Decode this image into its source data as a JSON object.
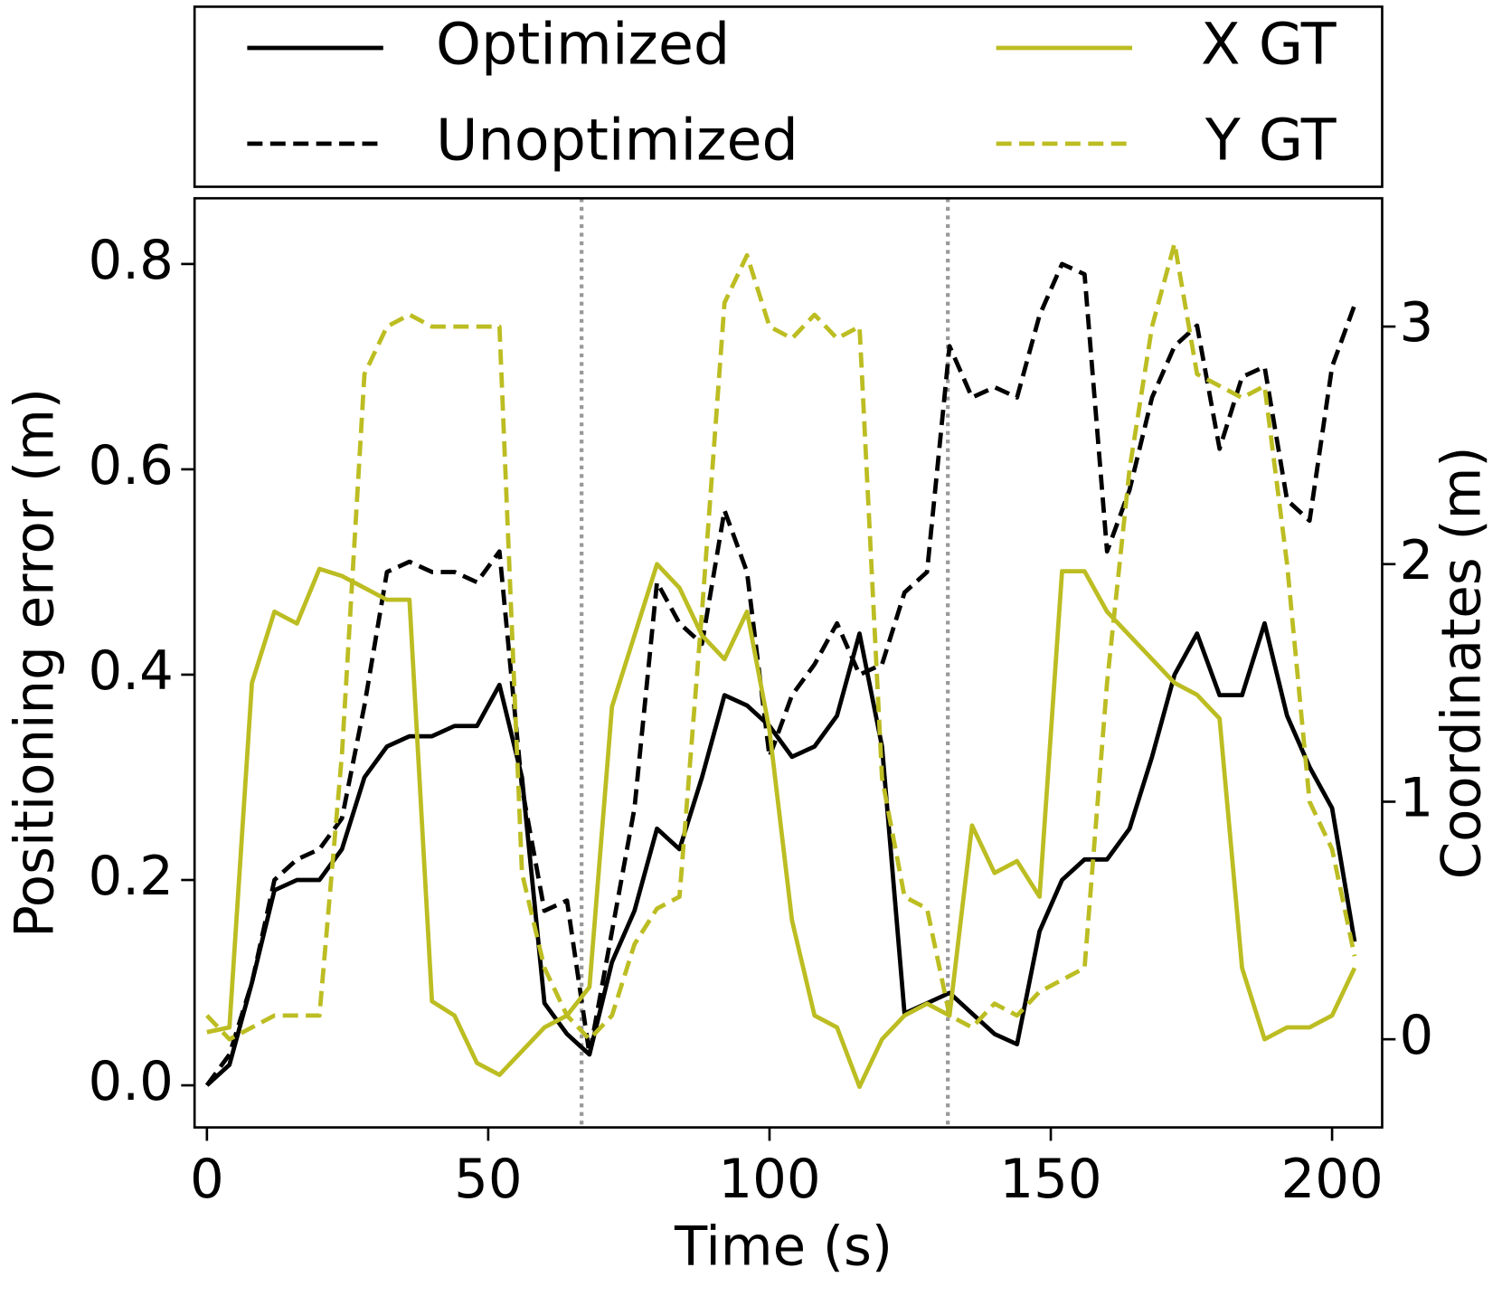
{
  "chart_data": {
    "type": "line",
    "x_label": "Time (s)",
    "y_label": "Positioning error (m)",
    "y2_label": "Coordinates (m)",
    "x": [
      0,
      4,
      8,
      12,
      16,
      20,
      24,
      28,
      32,
      36,
      40,
      44,
      48,
      52,
      56,
      60,
      64,
      68,
      72,
      76,
      80,
      84,
      88,
      92,
      96,
      100,
      104,
      108,
      112,
      116,
      120,
      124,
      128,
      132,
      136,
      140,
      144,
      148,
      152,
      156,
      160,
      164,
      168,
      172,
      176,
      180,
      184,
      188,
      192,
      196,
      200,
      204
    ],
    "series": [
      {
        "name": "Optimized",
        "color": "#000000",
        "dashed": false,
        "axis": "y",
        "values": [
          0.0,
          0.02,
          0.1,
          0.19,
          0.2,
          0.2,
          0.23,
          0.3,
          0.33,
          0.34,
          0.34,
          0.35,
          0.35,
          0.39,
          0.3,
          0.08,
          0.05,
          0.03,
          0.12,
          0.17,
          0.25,
          0.23,
          0.3,
          0.38,
          0.37,
          0.35,
          0.32,
          0.33,
          0.36,
          0.44,
          0.33,
          0.07,
          0.08,
          0.09,
          0.07,
          0.05,
          0.04,
          0.15,
          0.2,
          0.22,
          0.22,
          0.25,
          0.32,
          0.4,
          0.44,
          0.38,
          0.38,
          0.45,
          0.36,
          0.31,
          0.27,
          0.14
        ]
      },
      {
        "name": "Unoptimized",
        "color": "#000000",
        "dashed": true,
        "axis": "y",
        "values": [
          0.0,
          0.03,
          0.1,
          0.2,
          0.22,
          0.23,
          0.26,
          0.37,
          0.5,
          0.51,
          0.5,
          0.5,
          0.49,
          0.52,
          0.29,
          0.17,
          0.18,
          0.03,
          0.15,
          0.27,
          0.49,
          0.45,
          0.43,
          0.56,
          0.5,
          0.32,
          0.38,
          0.41,
          0.45,
          0.4,
          0.41,
          0.48,
          0.5,
          0.72,
          0.67,
          0.68,
          0.67,
          0.75,
          0.8,
          0.79,
          0.52,
          0.58,
          0.67,
          0.72,
          0.74,
          0.62,
          0.69,
          0.7,
          0.57,
          0.55,
          0.7,
          0.76
        ]
      },
      {
        "name": "X GT",
        "color": "#bcbd22",
        "dashed": false,
        "axis": "y2",
        "values": [
          0.03,
          0.05,
          1.5,
          1.8,
          1.75,
          1.98,
          1.95,
          1.9,
          1.85,
          1.85,
          0.16,
          0.1,
          -0.1,
          -0.15,
          -0.05,
          0.05,
          0.1,
          0.22,
          1.4,
          1.7,
          2.0,
          1.9,
          1.7,
          1.6,
          1.8,
          1.3,
          0.5,
          0.1,
          0.05,
          -0.2,
          0.0,
          0.1,
          0.15,
          0.1,
          0.9,
          0.7,
          0.75,
          0.6,
          1.97,
          1.97,
          1.8,
          1.7,
          1.6,
          1.5,
          1.45,
          1.35,
          0.3,
          0.0,
          0.05,
          0.05,
          0.1,
          0.3
        ]
      },
      {
        "name": "Y GT",
        "color": "#bcbd22",
        "dashed": true,
        "axis": "y2",
        "values": [
          0.1,
          0.0,
          0.05,
          0.1,
          0.1,
          0.1,
          1.2,
          2.8,
          3.0,
          3.05,
          3.0,
          3.0,
          3.0,
          3.0,
          0.7,
          0.3,
          0.1,
          0.0,
          0.1,
          0.4,
          0.55,
          0.6,
          1.8,
          3.1,
          3.3,
          3.0,
          2.95,
          3.05,
          2.95,
          3.0,
          1.1,
          0.6,
          0.55,
          0.1,
          0.05,
          0.15,
          0.1,
          0.2,
          0.25,
          0.3,
          1.5,
          2.4,
          3.0,
          3.35,
          2.8,
          2.75,
          2.7,
          2.75,
          2.0,
          1.0,
          0.8,
          0.35
        ]
      }
    ],
    "vlines": [
      66.6,
      131.7
    ],
    "xlim": [
      -2.2,
      208.9
    ],
    "xticks": [
      0,
      50,
      100,
      150,
      200
    ],
    "ylim": [
      -0.041,
      0.864
    ],
    "yticks": [
      {
        "value": 0,
        "label": "0.0"
      },
      0.2,
      0.4,
      0.6,
      0.8
    ],
    "y2lim": [
      -0.371,
      3.54
    ],
    "y2ticks": [
      0,
      1,
      2,
      3
    ],
    "y2_color": "#bcbd22",
    "grid": false
  }
}
